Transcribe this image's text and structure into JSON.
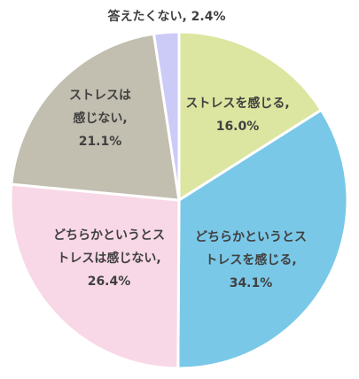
{
  "chart_data": {
    "type": "pie",
    "title": "",
    "start_angle_deg": 0,
    "direction": "clockwise",
    "slices": [
      {
        "label_lines": [
          "ストレスを感じる,",
          "16.0%"
        ],
        "name": "ストレスを感じる",
        "value": 16.0,
        "percent_label": "16.0%",
        "color": "#dce6a0"
      },
      {
        "label_lines": [
          "どちらかというとス",
          "トレスを感じる,",
          "34.1%"
        ],
        "name": "どちらかというとストレスを感じる",
        "value": 34.1,
        "percent_label": "34.1%",
        "color": "#7ac8e8"
      },
      {
        "label_lines": [
          "どちらかというとス",
          "トレスは感じない,",
          "26.4%"
        ],
        "name": "どちらかというとストレスは感じない",
        "value": 26.4,
        "percent_label": "26.4%",
        "color": "#f8d8e6"
      },
      {
        "label_lines": [
          "ストレスは",
          "感じない,",
          "21.1%"
        ],
        "name": "ストレスは感じない",
        "value": 21.1,
        "percent_label": "21.1%",
        "color": "#c2beb0"
      },
      {
        "label_lines": [
          "答えたくない, 2.4%"
        ],
        "name": "答えたくない",
        "value": 2.4,
        "percent_label": "2.4%",
        "color": "#cccaf6"
      }
    ]
  }
}
